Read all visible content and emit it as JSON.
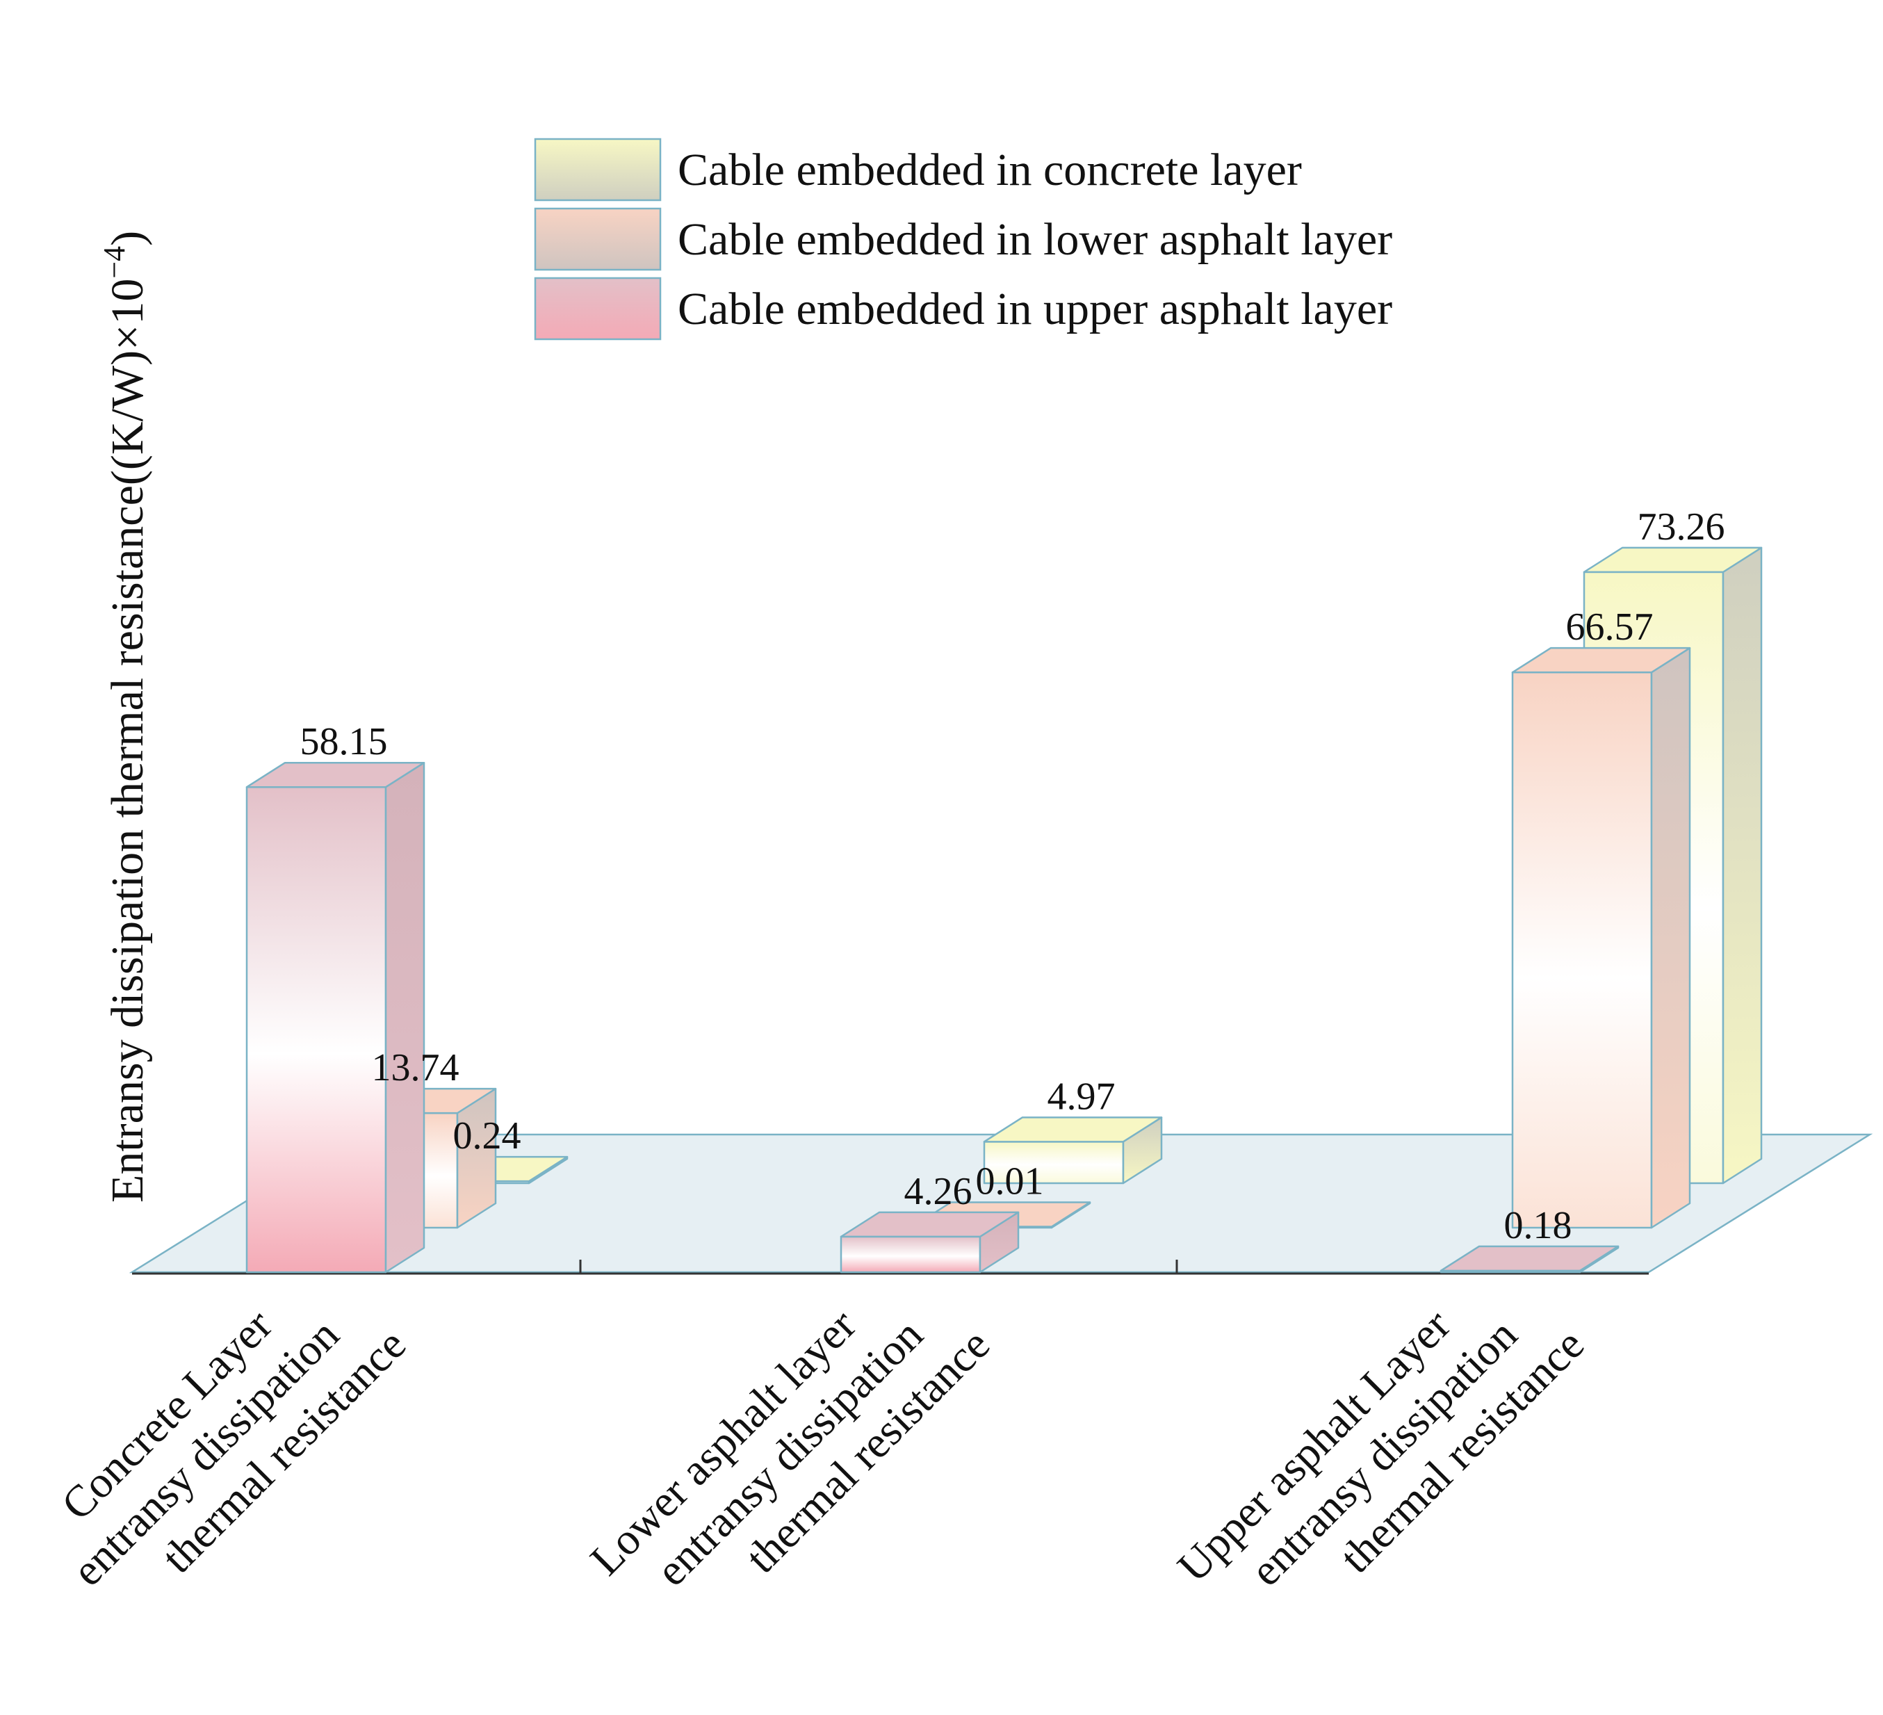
{
  "chart_data": {
    "type": "bar",
    "style": "3d-clustered",
    "title": "",
    "ylabel_main": "Entransy dissipation thermal resistance((K/W)×10",
    "ylabel_exponent": "−4",
    "ylabel_close": ")",
    "categories": [
      [
        "Concrete Layer",
        "entransy dissipation",
        "thermal resistance"
      ],
      [
        "Lower asphalt layer",
        "entransy dissipation",
        "thermal resistance"
      ],
      [
        "Upper asphalt Layer",
        "entransy dissipation",
        "thermal resistance"
      ]
    ],
    "series": [
      {
        "name": "Cable embedded in concrete layer",
        "values": [
          0.24,
          4.97,
          73.26
        ],
        "labels": [
          "0.24",
          "4.97",
          "73.26"
        ],
        "colors": {
          "top": "#f7f7c4",
          "front": "#fafadc",
          "side": "#cfcfc0"
        }
      },
      {
        "name": "Cable embedded in lower asphalt layer",
        "values": [
          13.74,
          0.01,
          66.57
        ],
        "labels": [
          "13.74",
          "0.01",
          "66.57"
        ],
        "colors": {
          "top": "#f8d3c3",
          "front": "#fbe2d6",
          "side": "#cfc4c0"
        }
      },
      {
        "name": "Cable embedded in upper asphalt layer",
        "values": [
          58.15,
          4.26,
          0.18
        ],
        "labels": [
          "58.15",
          "4.26",
          "0.18"
        ],
        "colors": {
          "top": "#e3c0c8",
          "front": "#f4aab6",
          "side": "#d4b2ba"
        }
      }
    ],
    "legend_position": "top-center",
    "floor_color": "#e6eff3",
    "edge_color": "#7ab3c6"
  }
}
